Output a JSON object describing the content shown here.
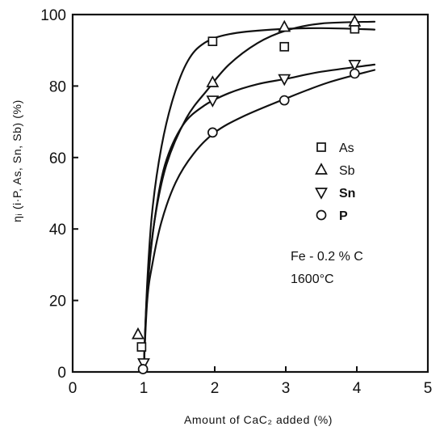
{
  "chart_data": {
    "type": "scatter",
    "xlabel": "Amount of CaC₂ added (%)",
    "ylabel": "ηᵢ (i·P, As, Sn, Sb) (%)",
    "xlim": [
      0,
      5
    ],
    "ylim": [
      0,
      100
    ],
    "xticks": [
      0,
      1,
      2,
      3,
      4,
      5
    ],
    "yticks": [
      0,
      20,
      40,
      60,
      80,
      100
    ],
    "grid": false,
    "legend_position": "center-right",
    "series": [
      {
        "name": "As",
        "marker": "square",
        "points": [
          [
            0.97,
            7
          ],
          [
            1.97,
            92.5
          ],
          [
            2.98,
            91
          ],
          [
            3.97,
            96
          ]
        ],
        "curve": [
          [
            1.0,
            0
          ],
          [
            1.05,
            25
          ],
          [
            1.12,
            45
          ],
          [
            1.25,
            63
          ],
          [
            1.42,
            77
          ],
          [
            1.62,
            87
          ],
          [
            1.85,
            92
          ],
          [
            2.2,
            94.5
          ],
          [
            2.8,
            95.8
          ],
          [
            3.5,
            96.2
          ],
          [
            4.25,
            95.8
          ]
        ]
      },
      {
        "name": "Sb",
        "marker": "triangle-up",
        "points": [
          [
            0.92,
            10.5
          ],
          [
            1.97,
            81
          ],
          [
            2.98,
            96.5
          ],
          [
            3.97,
            98
          ]
        ],
        "curve": [
          [
            1.0,
            0
          ],
          [
            1.05,
            23
          ],
          [
            1.15,
            42
          ],
          [
            1.32,
            58
          ],
          [
            1.6,
            71
          ],
          [
            1.9,
            79
          ],
          [
            2.2,
            86
          ],
          [
            2.6,
            92
          ],
          [
            3.0,
            95.5
          ],
          [
            3.5,
            97.5
          ],
          [
            4.25,
            98
          ]
        ]
      },
      {
        "name": "Sn",
        "marker": "triangle-down",
        "points": [
          [
            1.0,
            2.5
          ],
          [
            1.97,
            76
          ],
          [
            2.98,
            82
          ],
          [
            3.97,
            86
          ]
        ],
        "curve": [
          [
            1.0,
            0
          ],
          [
            1.05,
            22
          ],
          [
            1.15,
            42
          ],
          [
            1.3,
            58
          ],
          [
            1.55,
            69
          ],
          [
            1.85,
            74.5
          ],
          [
            2.2,
            78
          ],
          [
            2.6,
            80.5
          ],
          [
            3.0,
            82
          ],
          [
            3.5,
            84
          ],
          [
            4.25,
            86
          ]
        ]
      },
      {
        "name": "P",
        "marker": "circle",
        "points": [
          [
            0.99,
            0.8
          ],
          [
            1.97,
            67
          ],
          [
            2.98,
            76
          ],
          [
            3.97,
            83.5
          ]
        ],
        "curve": [
          [
            1.0,
            0
          ],
          [
            1.05,
            20
          ],
          [
            1.12,
            30
          ],
          [
            1.25,
            42
          ],
          [
            1.45,
            53
          ],
          [
            1.7,
            61
          ],
          [
            2.0,
            67
          ],
          [
            2.4,
            71.5
          ],
          [
            3.0,
            76.5
          ],
          [
            3.6,
            81
          ],
          [
            4.25,
            84.5
          ]
        ]
      }
    ],
    "annotations": [
      "Fe - 0.2 % C",
      "1600°C"
    ]
  }
}
